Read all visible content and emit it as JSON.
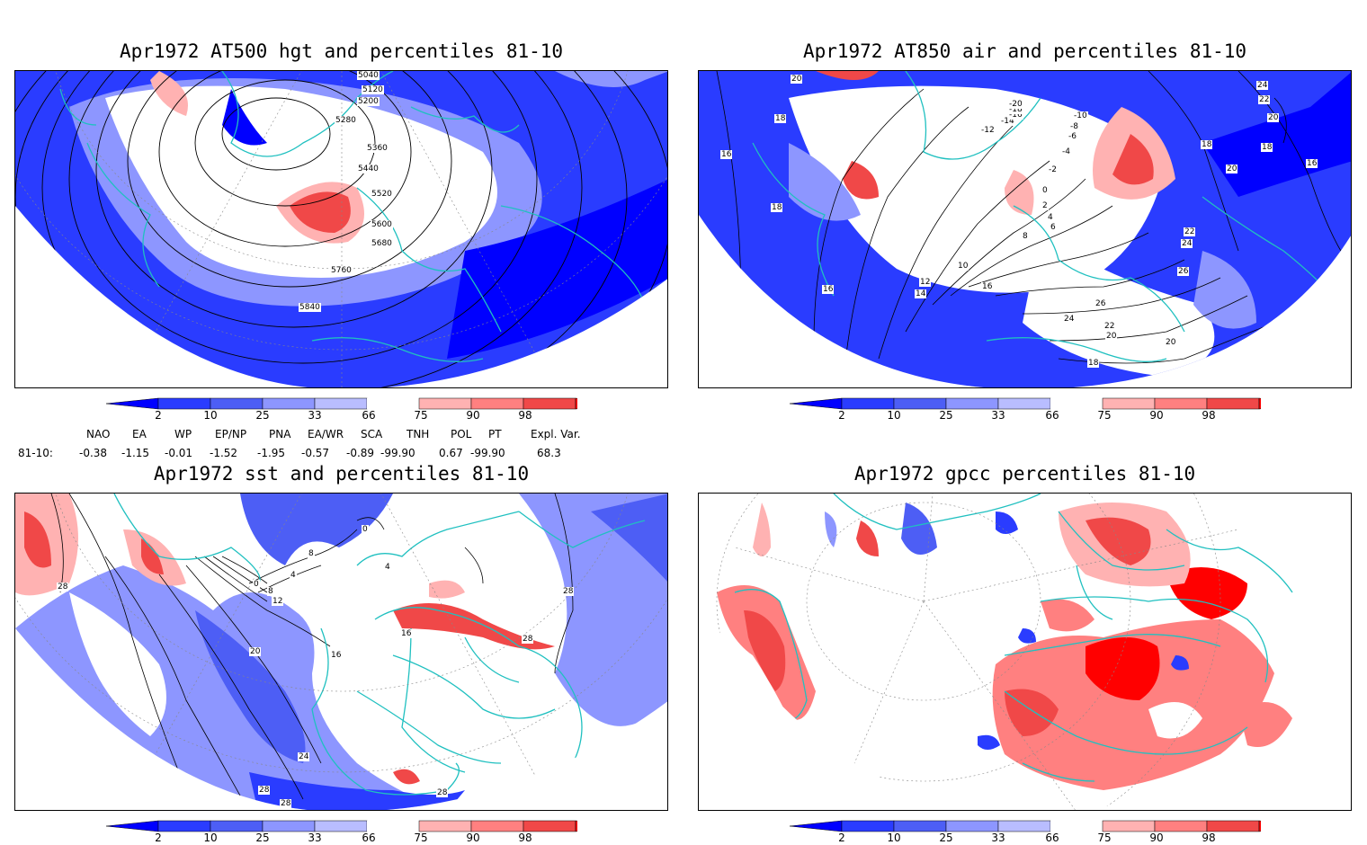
{
  "panels": [
    {
      "title": "Apr1972 AT500 hgt and percentiles 81-10",
      "contour_labels": [
        "5040",
        "5120",
        "5200",
        "5280",
        "5360",
        "5440",
        "5520",
        "5600",
        "5680",
        "5760",
        "5840"
      ]
    },
    {
      "title": "Apr1972 AT850 air and percentiles 81-10",
      "contour_labels": [
        "20",
        "18",
        "16",
        "18",
        "16",
        "12",
        "14",
        "10",
        "16",
        "8",
        "6",
        "4",
        "2",
        "0",
        "-2",
        "-4",
        "-6",
        "-8",
        "-10",
        "-12",
        "-14",
        "-16",
        "-18",
        "-20",
        "22",
        "24",
        "26",
        "26",
        "24",
        "22",
        "20",
        "20",
        "18",
        "24",
        "22",
        "20",
        "18",
        "18",
        "20",
        "16"
      ]
    },
    {
      "title": "Apr1972 sst and percentiles 81-10",
      "contour_labels": [
        "28",
        "20",
        "24",
        "28",
        "28",
        "0",
        "4",
        "8",
        "12",
        "16",
        "16",
        "8",
        "28",
        "28",
        "0",
        "4",
        "28"
      ]
    },
    {
      "title": "Apr1972 gpcc percentiles 81-10",
      "contour_labels": []
    }
  ],
  "colorbar": {
    "ticks": [
      "2",
      "10",
      "25",
      "33",
      "66",
      "75",
      "90",
      "98"
    ],
    "colors": [
      "#0000ff",
      "#2a3cff",
      "#4d5ef5",
      "#8d96ff",
      "#b9bdff",
      "#ffffff",
      "#ffb2b2",
      "#ff8080",
      "#f04848",
      "#ff0000"
    ]
  },
  "teleconnection": {
    "headers": [
      "NAO",
      "EA",
      "WP",
      "EP/NP",
      "PNA",
      "EA/WR",
      "SCA",
      "TNH",
      "POL",
      "PT",
      "Expl. Var."
    ],
    "row_label": "81-10:",
    "values": [
      "-0.38",
      "-1.15",
      "-0.01",
      "-1.52",
      "-1.95",
      "-0.57",
      "-0.89",
      "-99.90",
      "0.67",
      "-99.90",
      "68.3"
    ]
  },
  "colors": {
    "coast": "#20c0c0",
    "blue": "#2a3cff",
    "red": "#f04848"
  }
}
